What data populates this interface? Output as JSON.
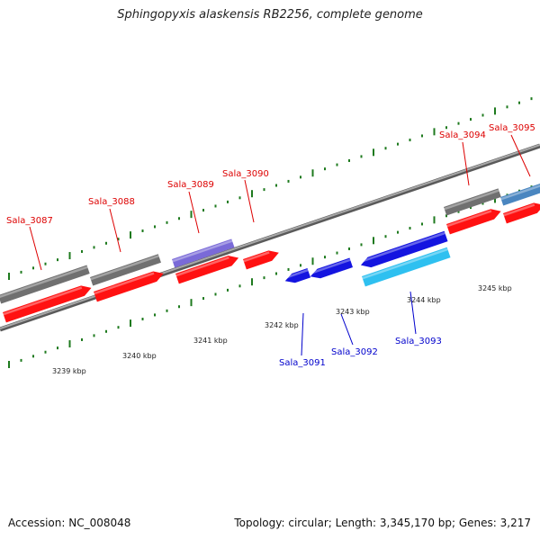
{
  "title": "Sphingopyxis alaskensis RB2256, complete genome",
  "footer": {
    "accession": "Accession: NC_008048",
    "summary": "Topology: circular; Length: 3,345,170 bp; Genes: 3,217"
  },
  "colors": {
    "forward_label": "#dd0000",
    "reverse_label": "#0000cc",
    "cds_red": "#ff1111",
    "gene_gray": "#707070",
    "purple": "#7a6ad8",
    "blue": "#1414e0",
    "cyan": "#2ec0f0",
    "steel": "#4a86c0",
    "tick_green": "#1e7a1e",
    "backbone": "#808080"
  },
  "scale_labels": [
    "3239 kbp",
    "3240 kbp",
    "3241 kbp",
    "3242 kbp",
    "3243 kbp",
    "3244 kbp",
    "3245 kbp"
  ],
  "genes": {
    "forward": [
      "Sala_3087",
      "Sala_3088",
      "Sala_3089",
      "Sala_3090",
      "Sala_3094",
      "Sala_3095"
    ],
    "reverse": [
      "Sala_3091",
      "Sala_3092",
      "Sala_3093"
    ]
  }
}
